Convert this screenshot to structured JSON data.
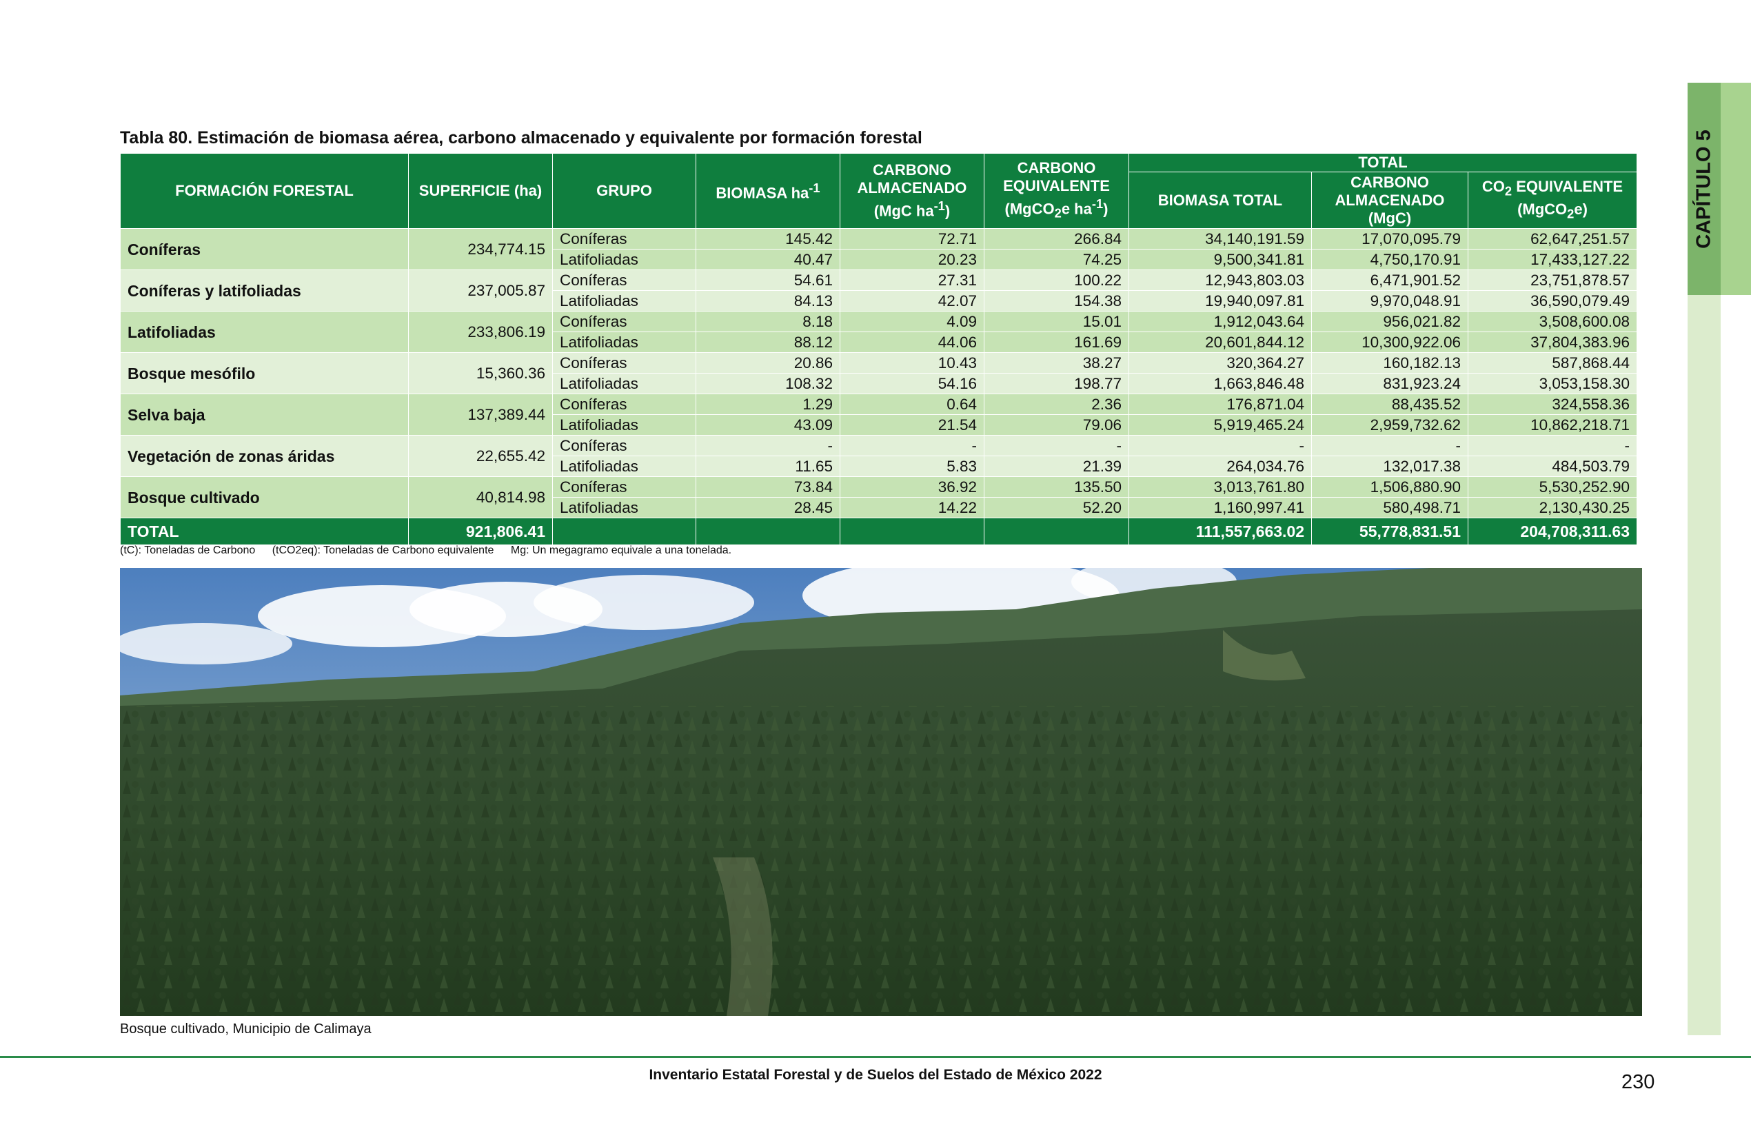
{
  "side_tab": {
    "label": "CAPÍTULO 5"
  },
  "table_title": "Tabla 80. Estimación de biomasa aérea, carbono almacenado y equivalente por formación forestal",
  "headers": {
    "formacion": "FORMACIÓN FORESTAL",
    "superficie": "SUPERFICIE (ha)",
    "grupo": "GRUPO",
    "biomasa_ha": "BIOMASA ha",
    "biomasa_sup": "-1",
    "carbono_line1": "CARBONO ALMACENADO",
    "carbono_line2": "(MgC ha",
    "carbono_sup": "-1",
    "carbono_close": ")",
    "equiv_line1": "CARBONO EQUIVALENTE",
    "equiv_line2a": "(MgCO",
    "equiv_sub": "2",
    "equiv_line2b": "e ha",
    "equiv_sup": "-1",
    "equiv_close": ")",
    "total": "TOTAL",
    "biomasa_total": "BIOMASA TOTAL",
    "carbono_total": "CARBONO ALMACENADO (MgC)",
    "co2_a": "CO",
    "co2_sub": "2",
    "co2_b": " EQUIVALENTE",
    "co2_unit_a": "(MgCO",
    "co2_unit_sub": "2",
    "co2_unit_b": "e)"
  },
  "rows": [
    {
      "formacion": "Coníferas",
      "superficie": "234,774.15",
      "grupos": [
        {
          "grupo": "Coníferas",
          "biomasa": "145.42",
          "carbono": "72.71",
          "equiv": "266.84",
          "biomasa_total": "34,140,191.59",
          "carbono_total": "17,070,095.79",
          "co2_total": "62,647,251.57"
        },
        {
          "grupo": "Latifoliadas",
          "biomasa": "40.47",
          "carbono": "20.23",
          "equiv": "74.25",
          "biomasa_total": "9,500,341.81",
          "carbono_total": "4,750,170.91",
          "co2_total": "17,433,127.22"
        }
      ]
    },
    {
      "formacion": "Coníferas y latifoliadas",
      "superficie": "237,005.87",
      "grupos": [
        {
          "grupo": "Coníferas",
          "biomasa": "54.61",
          "carbono": "27.31",
          "equiv": "100.22",
          "biomasa_total": "12,943,803.03",
          "carbono_total": "6,471,901.52",
          "co2_total": "23,751,878.57"
        },
        {
          "grupo": "Latifoliadas",
          "biomasa": "84.13",
          "carbono": "42.07",
          "equiv": "154.38",
          "biomasa_total": "19,940,097.81",
          "carbono_total": "9,970,048.91",
          "co2_total": "36,590,079.49"
        }
      ]
    },
    {
      "formacion": "Latifoliadas",
      "superficie": "233,806.19",
      "grupos": [
        {
          "grupo": "Coníferas",
          "biomasa": "8.18",
          "carbono": "4.09",
          "equiv": "15.01",
          "biomasa_total": "1,912,043.64",
          "carbono_total": "956,021.82",
          "co2_total": "3,508,600.08"
        },
        {
          "grupo": "Latifoliadas",
          "biomasa": "88.12",
          "carbono": "44.06",
          "equiv": "161.69",
          "biomasa_total": "20,601,844.12",
          "carbono_total": "10,300,922.06",
          "co2_total": "37,804,383.96"
        }
      ]
    },
    {
      "formacion": "Bosque mesófilo",
      "superficie": "15,360.36",
      "grupos": [
        {
          "grupo": "Coníferas",
          "biomasa": "20.86",
          "carbono": "10.43",
          "equiv": "38.27",
          "biomasa_total": "320,364.27",
          "carbono_total": "160,182.13",
          "co2_total": "587,868.44"
        },
        {
          "grupo": "Latifoliadas",
          "biomasa": "108.32",
          "carbono": "54.16",
          "equiv": "198.77",
          "biomasa_total": "1,663,846.48",
          "carbono_total": "831,923.24",
          "co2_total": "3,053,158.30"
        }
      ]
    },
    {
      "formacion": "Selva baja",
      "superficie": "137,389.44",
      "grupos": [
        {
          "grupo": "Coníferas",
          "biomasa": "1.29",
          "carbono": "0.64",
          "equiv": "2.36",
          "biomasa_total": "176,871.04",
          "carbono_total": "88,435.52",
          "co2_total": "324,558.36"
        },
        {
          "grupo": "Latifoliadas",
          "biomasa": "43.09",
          "carbono": "21.54",
          "equiv": "79.06",
          "biomasa_total": "5,919,465.24",
          "carbono_total": "2,959,732.62",
          "co2_total": "10,862,218.71"
        }
      ]
    },
    {
      "formacion": "Vegetación de zonas áridas",
      "superficie": "22,655.42",
      "grupos": [
        {
          "grupo": "Coníferas",
          "biomasa": "-",
          "carbono": "-",
          "equiv": "-",
          "biomasa_total": "-",
          "carbono_total": "-",
          "co2_total": "-"
        },
        {
          "grupo": "Latifoliadas",
          "biomasa": "11.65",
          "carbono": "5.83",
          "equiv": "21.39",
          "biomasa_total": "264,034.76",
          "carbono_total": "132,017.38",
          "co2_total": "484,503.79"
        }
      ]
    },
    {
      "formacion": "Bosque cultivado",
      "superficie": "40,814.98",
      "grupos": [
        {
          "grupo": "Coníferas",
          "biomasa": "73.84",
          "carbono": "36.92",
          "equiv": "135.50",
          "biomasa_total": "3,013,761.80",
          "carbono_total": "1,506,880.90",
          "co2_total": "5,530,252.90"
        },
        {
          "grupo": "Latifoliadas",
          "biomasa": "28.45",
          "carbono": "14.22",
          "equiv": "52.20",
          "biomasa_total": "1,160,997.41",
          "carbono_total": "580,498.71",
          "co2_total": "2,130,430.25"
        }
      ]
    }
  ],
  "total_row": {
    "label": "TOTAL",
    "superficie": "921,806.41",
    "biomasa_total": "111,557,663.02",
    "carbono_total": "55,778,831.51",
    "co2_total": "204,708,311.63"
  },
  "notes": [
    "(tC): Toneladas de Carbono",
    "(tCO2eq): Toneladas de Carbono equivalente",
    "Mg: Un megagramo equivale a una tonelada."
  ],
  "photo_caption": "Bosque cultivado, Municipio de Calimaya",
  "footer": {
    "title": "Inventario Estatal Forestal y de Suelos del Estado de México 2022",
    "page_number": "230"
  }
}
